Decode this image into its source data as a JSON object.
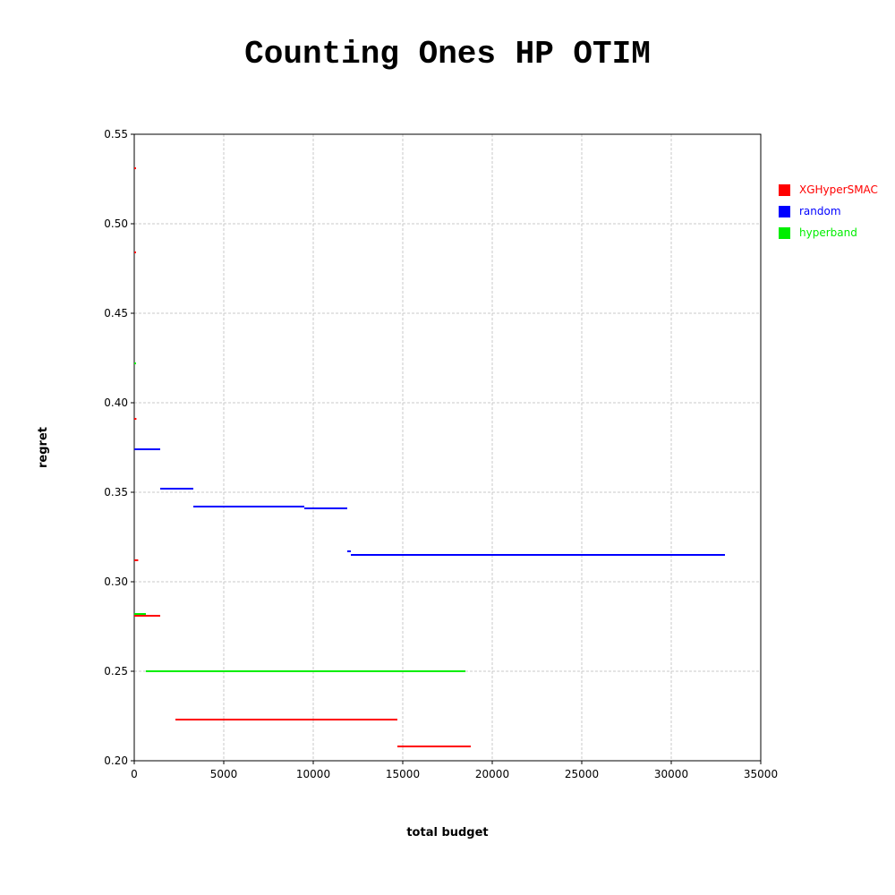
{
  "chart_data": {
    "type": "line",
    "title": "Counting Ones HP OTIM",
    "xlabel": "total budget",
    "ylabel": "regret",
    "xlim": [
      0,
      35000
    ],
    "ylim": [
      0.2,
      0.55
    ],
    "xticks": [
      0,
      5000,
      10000,
      15000,
      20000,
      25000,
      30000,
      35000
    ],
    "yticks": [
      0.2,
      0.25,
      0.3,
      0.35,
      0.4,
      0.45,
      0.5,
      0.55
    ],
    "xtick_labels": [
      "0",
      "5000",
      "10000",
      "15000",
      "20000",
      "25000",
      "30000",
      "35000"
    ],
    "ytick_labels": [
      "0.20",
      "0.25",
      "0.30",
      "0.35",
      "0.40",
      "0.45",
      "0.50",
      "0.55"
    ],
    "grid": true,
    "legend_position": "right",
    "series": [
      {
        "name": "XGHyperSMAC",
        "color": "#ff0000",
        "segments": [
          [
            0,
            60,
            0.531
          ],
          [
            0,
            60,
            0.484
          ],
          [
            0,
            120,
            0.391
          ],
          [
            0,
            220,
            0.312
          ],
          [
            0,
            1450,
            0.281
          ],
          [
            2300,
            14700,
            0.223
          ],
          [
            14700,
            18800,
            0.208
          ]
        ]
      },
      {
        "name": "random",
        "color": "#0000ff",
        "segments": [
          [
            0,
            1450,
            0.374
          ],
          [
            1450,
            3300,
            0.352
          ],
          [
            3300,
            9500,
            0.342
          ],
          [
            9500,
            11900,
            0.341
          ],
          [
            11900,
            12100,
            0.317
          ],
          [
            12100,
            33000,
            0.315
          ]
        ]
      },
      {
        "name": "hyperband",
        "color": "#00ee00",
        "segments": [
          [
            0,
            60,
            0.422
          ],
          [
            0,
            650,
            0.282
          ],
          [
            650,
            18500,
            0.25
          ]
        ]
      }
    ]
  }
}
